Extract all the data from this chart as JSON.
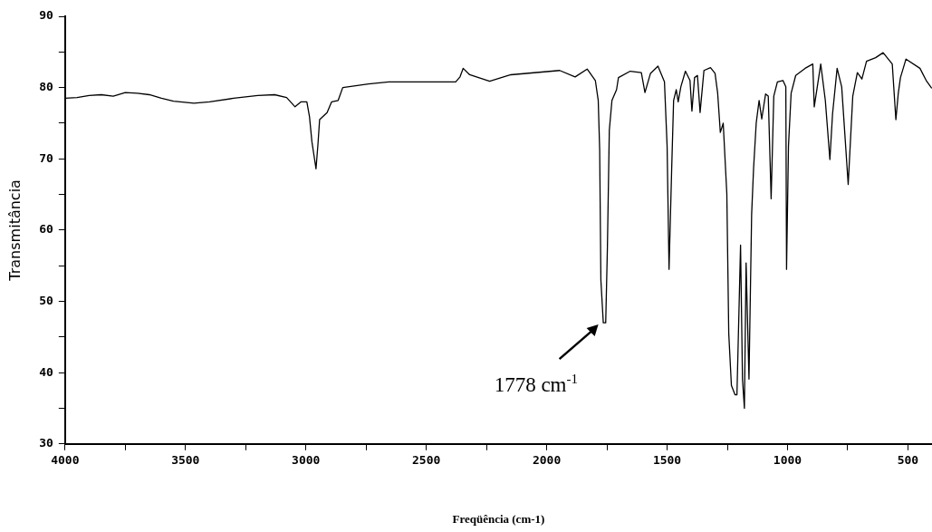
{
  "chart_data": {
    "type": "line",
    "xlabel": "Freqüência (cm-1)",
    "ylabel": "Transmitância",
    "xlim": [
      4000,
      400
    ],
    "ylim": [
      30,
      90
    ],
    "xticks": [
      4000,
      {
        "value": 3750,
        "label": null
      },
      3500,
      {
        "value": 3250,
        "label": null
      },
      3000,
      {
        "value": 2750,
        "label": null
      },
      2500,
      {
        "value": 2250,
        "label": null
      },
      2000,
      {
        "value": 1750,
        "label": null
      },
      1500,
      {
        "value": 1250,
        "label": null
      },
      1000,
      {
        "value": 750,
        "label": null
      },
      500
    ],
    "yticks": [
      30,
      {
        "value": 35,
        "label": null
      },
      40,
      {
        "value": 45,
        "label": null
      },
      50,
      {
        "value": 55,
        "label": null
      },
      60,
      {
        "value": 65,
        "label": null
      },
      70,
      {
        "value": 75,
        "label": null
      },
      80,
      {
        "value": 85,
        "label": null
      },
      90
    ],
    "grid": false,
    "legend": false,
    "marker": "none",
    "line_style": "solid",
    "annotations": [
      {
        "text": "1778 cm$^{-1}$",
        "x": 1778,
        "y": 47
      }
    ],
    "series": [
      {
        "color": "#000000",
        "x": [
          4000,
          3950,
          3900,
          3850,
          3800,
          3750,
          3700,
          3650,
          3600,
          3550,
          3465,
          3400,
          3300,
          3200,
          3130,
          3080,
          3045,
          3020,
          2996,
          2985,
          2975,
          2958,
          2950,
          2943,
          2912,
          2893,
          2866,
          2847,
          2740,
          2656,
          2378,
          2360,
          2347,
          2320,
          2237,
          2149,
          1946,
          1882,
          1832,
          1798,
          1786,
          1780,
          1775,
          1765,
          1755,
          1748,
          1740,
          1729,
          1710,
          1702,
          1653,
          1607,
          1592,
          1569,
          1538,
          1511,
          1500,
          1492,
          1481,
          1473,
          1462,
          1454,
          1443,
          1424,
          1405,
          1397,
          1386,
          1374,
          1363,
          1347,
          1320,
          1301,
          1290,
          1279,
          1267,
          1252,
          1244,
          1233,
          1218,
          1210,
          1195,
          1187,
          1179,
          1172,
          1160,
          1149,
          1141,
          1130,
          1118,
          1107,
          1091,
          1080,
          1068,
          1057,
          1042,
          1019,
          1007,
          1004,
          996,
          985,
          966,
          927,
          895,
          889,
          862,
          843,
          824,
          813,
          794,
          775,
          748,
          729,
          710,
          691,
          672,
          634,
          603,
          565,
          550,
          540,
          531,
          508,
          450,
          424,
          401
        ],
        "values": [
          78.5,
          78.6,
          78.9,
          79.0,
          78.8,
          79.3,
          79.2,
          79.0,
          78.5,
          78.1,
          77.8,
          78.0,
          78.5,
          78.9,
          79.0,
          78.6,
          77.3,
          78.0,
          78.0,
          75.9,
          72.4,
          68.6,
          72,
          75.5,
          76.5,
          78.0,
          78.2,
          80.0,
          80.5,
          80.8,
          80.8,
          81.5,
          82.7,
          81.8,
          80.9,
          81.8,
          82.4,
          81.5,
          82.6,
          81.0,
          78.2,
          71.2,
          53,
          47,
          47,
          57.4,
          74,
          78.2,
          79.7,
          81.4,
          82.3,
          82.1,
          79.3,
          82.0,
          83.0,
          80.8,
          71.8,
          54.5,
          68.6,
          78.2,
          79.7,
          78.0,
          80.1,
          82.3,
          81.0,
          76.7,
          81.4,
          81.7,
          76.5,
          82.4,
          82.8,
          82.0,
          79.2,
          73.7,
          75.0,
          65.1,
          45.5,
          38.2,
          36.9,
          36.9,
          57.9,
          39.1,
          35.0,
          55.4,
          39.1,
          62.2,
          68.6,
          75.0,
          78.2,
          75.6,
          79.1,
          78.8,
          64.4,
          78.8,
          80.8,
          81.0,
          80.1,
          54.5,
          71.8,
          79.2,
          81.7,
          82.7,
          83.3,
          77.3,
          83.3,
          78.2,
          69.9,
          76.3,
          82.7,
          80.1,
          66.4,
          78.8,
          82.1,
          81.2,
          83.7,
          84.2,
          84.9,
          83.3,
          75.5,
          79.2,
          81.4,
          84.0,
          82.7,
          81.0,
          79.9
        ]
      }
    ]
  }
}
